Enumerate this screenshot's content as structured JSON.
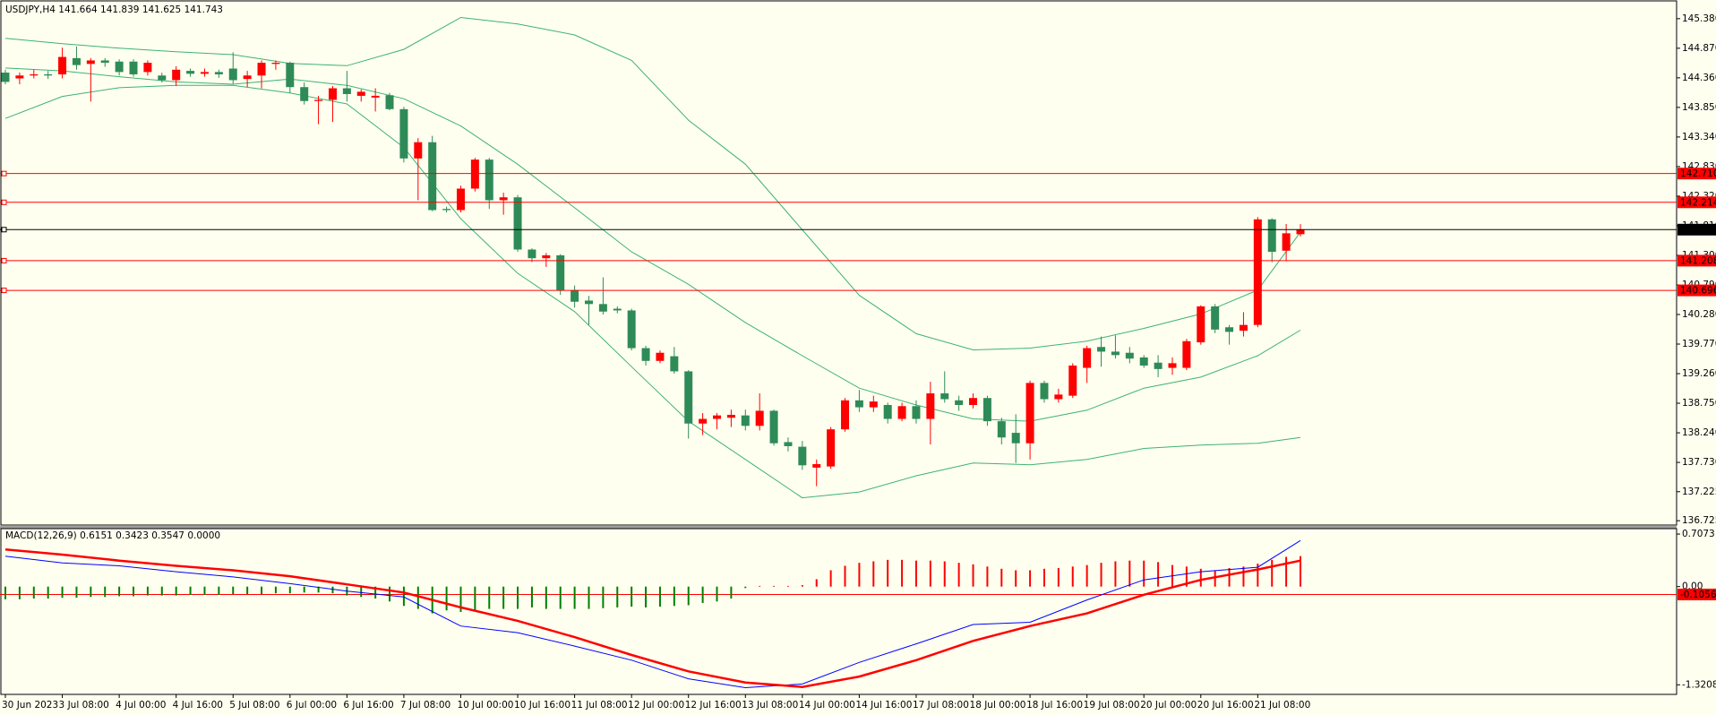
{
  "chart_data": [
    {
      "type": "candlestick",
      "title": "USDJPY,H4  141.664 141.839 141.625 141.743",
      "up_color": "#ff0000",
      "down_color": "#2e8b57",
      "categories": [
        "30 Jun 2023",
        null,
        null,
        null,
        "3 Jul 08:00",
        null,
        null,
        null,
        "4 Jul 00:00",
        null,
        null,
        null,
        "4 Jul 16:00",
        null,
        null,
        null,
        "5 Jul 08:00",
        null,
        null,
        null,
        "6 Jul 00:00",
        null,
        null,
        null,
        "6 Jul 16:00",
        null,
        null,
        null,
        "7 Jul 08:00",
        null,
        null,
        null,
        "10 Jul 00:00",
        null,
        null,
        null,
        "10 Jul 16:00",
        null,
        null,
        null,
        "11 Jul 08:00",
        null,
        null,
        null,
        "12 Jul 00:00",
        null,
        null,
        null,
        "12 Jul 16:00",
        null,
        null,
        null,
        "13 Jul 08:00",
        null,
        null,
        null,
        "14 Jul 00:00",
        null,
        null,
        null,
        "14 Jul 16:00",
        null,
        null,
        null,
        "17 Jul 08:00",
        null,
        null,
        null,
        "18 Jul 00:00",
        null,
        null,
        null,
        "18 Jul 16:00",
        null,
        null,
        null,
        "19 Jul 08:00",
        null,
        null,
        null,
        "20 Jul 00:00",
        null,
        null,
        null,
        "20 Jul 16:00",
        null,
        null,
        null,
        "21 Jul 08:00",
        null,
        null,
        null
      ],
      "open": [
        144.45,
        144.35,
        144.4,
        144.42,
        144.42,
        144.7,
        144.6,
        144.66,
        144.64,
        144.64,
        144.46,
        144.4,
        144.32,
        144.48,
        144.43,
        144.46,
        144.52,
        144.34,
        144.4,
        144.6,
        144.62,
        144.2,
        143.96,
        143.98,
        144.18,
        144.05,
        144.02,
        144.06,
        143.82,
        142.97,
        143.25,
        142.1,
        142.08,
        142.45,
        142.95,
        142.25,
        142.3,
        141.4,
        141.25,
        141.3,
        140.7,
        140.52,
        140.46,
        140.38,
        140.35,
        139.7,
        139.48,
        139.56,
        139.3,
        138.4,
        138.48,
        138.5,
        138.54,
        138.36,
        138.62,
        138.08,
        138.0,
        137.64,
        137.66,
        138.3,
        138.8,
        138.68,
        138.72,
        138.48,
        138.7,
        138.48,
        138.92,
        138.8,
        138.72,
        138.84,
        138.44,
        138.24,
        138.06,
        139.1,
        138.82,
        138.88,
        139.36,
        139.72,
        139.64,
        139.62,
        139.54,
        139.45,
        139.36,
        139.36,
        139.8,
        140.42,
        140.06,
        140.0,
        140.1,
        141.92,
        141.38,
        141.664
      ],
      "high": [
        144.5,
        144.45,
        144.5,
        144.48,
        144.88,
        144.9,
        144.7,
        144.7,
        144.68,
        144.68,
        144.66,
        144.45,
        144.56,
        144.52,
        144.52,
        144.5,
        144.8,
        144.48,
        144.66,
        144.66,
        144.64,
        144.28,
        144.05,
        144.22,
        144.48,
        144.16,
        144.18,
        144.1,
        143.86,
        143.32,
        143.36,
        142.14,
        142.5,
        142.98,
        142.98,
        142.38,
        142.34,
        141.42,
        141.34,
        141.32,
        140.78,
        140.6,
        140.92,
        140.42,
        140.38,
        139.74,
        139.66,
        139.72,
        139.32,
        138.58,
        138.58,
        138.64,
        138.64,
        138.92,
        138.64,
        138.16,
        138.1,
        137.78,
        138.34,
        138.84,
        138.98,
        138.88,
        138.76,
        138.76,
        138.8,
        139.12,
        139.3,
        138.88,
        138.92,
        138.88,
        138.5,
        138.56,
        139.14,
        139.14,
        139.0,
        139.44,
        139.74,
        139.9,
        139.92,
        139.72,
        139.58,
        139.58,
        139.54,
        139.86,
        140.44,
        140.46,
        140.1,
        140.32,
        141.96,
        141.94,
        141.84,
        141.839
      ],
      "low": [
        144.25,
        144.25,
        144.35,
        144.34,
        144.35,
        144.5,
        143.95,
        144.55,
        144.4,
        144.38,
        144.4,
        144.28,
        144.22,
        144.38,
        144.38,
        144.36,
        144.26,
        144.2,
        144.18,
        144.5,
        144.1,
        143.9,
        143.56,
        143.6,
        143.95,
        143.95,
        143.78,
        143.8,
        142.9,
        142.25,
        142.06,
        142.04,
        142.04,
        142.4,
        142.1,
        142.0,
        141.36,
        141.18,
        141.1,
        140.62,
        140.4,
        140.1,
        140.28,
        140.3,
        139.66,
        139.4,
        139.44,
        139.26,
        138.14,
        138.2,
        138.3,
        138.34,
        138.28,
        138.28,
        138.02,
        137.92,
        137.6,
        137.32,
        137.62,
        138.26,
        138.6,
        138.6,
        138.4,
        138.44,
        138.4,
        138.04,
        138.76,
        138.62,
        138.66,
        138.36,
        138.04,
        137.72,
        137.78,
        138.76,
        138.76,
        138.84,
        139.1,
        139.38,
        139.52,
        139.44,
        139.36,
        139.2,
        139.24,
        139.32,
        139.76,
        139.96,
        139.76,
        139.9,
        140.06,
        141.18,
        141.2,
        141.625
      ],
      "close": [
        144.29,
        144.4,
        144.42,
        144.4,
        144.72,
        144.58,
        144.66,
        144.62,
        144.46,
        144.42,
        144.62,
        144.32,
        144.5,
        144.43,
        144.46,
        144.42,
        144.32,
        144.4,
        144.62,
        144.62,
        144.2,
        143.96,
        143.98,
        144.18,
        144.08,
        144.12,
        144.05,
        143.82,
        142.97,
        143.25,
        142.08,
        142.08,
        142.45,
        142.95,
        142.25,
        142.3,
        141.4,
        141.25,
        141.3,
        140.7,
        140.5,
        140.46,
        140.33,
        140.35,
        139.7,
        139.48,
        139.62,
        139.3,
        138.4,
        138.48,
        138.54,
        138.55,
        138.36,
        138.62,
        138.06,
        138.01,
        137.68,
        137.7,
        138.3,
        138.8,
        138.68,
        138.78,
        138.48,
        138.7,
        138.48,
        138.92,
        138.82,
        138.72,
        138.84,
        138.44,
        138.16,
        138.06,
        139.1,
        138.82,
        138.9,
        139.4,
        139.7,
        139.64,
        139.58,
        139.52,
        139.4,
        139.34,
        139.44,
        139.82,
        140.42,
        140.02,
        139.98,
        140.1,
        141.92,
        141.36,
        141.68,
        141.743
      ],
      "bands": [
        {
          "color": "#3cb371",
          "x": [
            0,
            4,
            8,
            12,
            16,
            20,
            24,
            28,
            32,
            36,
            40,
            44,
            48,
            52,
            56,
            60,
            64,
            68,
            72,
            76,
            80,
            84,
            88,
            91
          ],
          "values": [
            145.04,
            144.95,
            144.87,
            144.81,
            144.76,
            144.61,
            144.57,
            144.85,
            145.4,
            145.29,
            145.1,
            144.66,
            143.63,
            142.87,
            141.74,
            140.61,
            139.95,
            139.67,
            139.7,
            139.82,
            140.04,
            140.29,
            140.7,
            141.7
          ]
        },
        {
          "color": "#3cb371",
          "x": [
            0,
            4,
            8,
            12,
            16,
            20,
            24,
            28,
            32,
            36,
            40,
            44,
            48,
            52,
            56,
            60,
            64,
            68,
            72,
            76,
            80,
            84,
            88,
            91
          ],
          "values": [
            144.53,
            144.48,
            144.38,
            144.29,
            144.25,
            144.34,
            144.23,
            144.0,
            143.53,
            142.87,
            142.12,
            141.36,
            140.8,
            140.14,
            139.57,
            139.01,
            138.72,
            138.48,
            138.44,
            138.63,
            139.01,
            139.2,
            139.57,
            140.01
          ]
        },
        {
          "color": "#3cb371",
          "x": [
            0,
            4,
            8,
            12,
            16,
            20,
            24,
            28,
            32,
            36,
            40,
            44,
            48,
            52,
            56,
            60,
            64,
            68,
            72,
            76,
            80,
            84,
            88,
            91
          ],
          "values": [
            143.66,
            144.04,
            144.19,
            144.23,
            144.23,
            144.1,
            143.91,
            143.16,
            141.93,
            140.99,
            140.33,
            139.38,
            138.44,
            137.78,
            137.12,
            137.22,
            137.5,
            137.72,
            137.69,
            137.78,
            137.97,
            138.03,
            138.06,
            138.16
          ]
        }
      ],
      "levels": [
        {
          "value": 142.71,
          "label": "142.710",
          "color": "#ff0000"
        },
        {
          "value": 142.214,
          "label": "142.214",
          "color": "#ff0000"
        },
        {
          "value": 141.743,
          "label": "141.743",
          "color": "#000000"
        },
        {
          "value": 141.208,
          "label": "141.208",
          "color": "#ff0000"
        },
        {
          "value": 140.696,
          "label": "140.696",
          "color": "#ff0000"
        }
      ],
      "ylim": [
        136.65,
        145.64
      ],
      "yticks": [
        {
          "value": 145.38,
          "label": "145.380"
        },
        {
          "value": 144.87,
          "label": "144.870"
        },
        {
          "value": 144.36,
          "label": "144.360"
        },
        {
          "value": 143.85,
          "label": "143.850"
        },
        {
          "value": 143.34,
          "label": "143.340"
        },
        {
          "value": 142.83,
          "label": "142.830"
        },
        {
          "value": 142.32,
          "label": "142.320"
        },
        {
          "value": 141.81,
          "label": "141.810"
        },
        {
          "value": 141.3,
          "label": "141.300"
        },
        {
          "value": 140.79,
          "label": "140.790"
        },
        {
          "value": 140.28,
          "label": "140.280"
        },
        {
          "value": 139.77,
          "label": "139.770"
        },
        {
          "value": 139.26,
          "label": "139.260"
        },
        {
          "value": 138.75,
          "label": "138.750"
        },
        {
          "value": 138.24,
          "label": "138.240"
        },
        {
          "value": 137.73,
          "label": "137.730"
        },
        137.225,
        136.725
      ]
    },
    {
      "type": "macd",
      "title": "MACD(12,26,9) 0.6151 0.3423 0.3547 0.0000",
      "level": -0.1056,
      "level_color": "#ff0000",
      "histogram": {
        "up_color": "#ff0000",
        "down_color": "#008000",
        "values": [
          -0.17,
          -0.17,
          -0.16,
          -0.16,
          -0.15,
          -0.15,
          -0.14,
          -0.14,
          -0.13,
          -0.13,
          -0.12,
          -0.12,
          -0.12,
          -0.11,
          -0.11,
          -0.11,
          -0.1,
          -0.1,
          -0.1,
          -0.09,
          -0.09,
          -0.08,
          -0.08,
          -0.09,
          -0.12,
          -0.14,
          -0.16,
          -0.2,
          -0.26,
          -0.3,
          -0.36,
          -0.32,
          -0.34,
          -0.33,
          -0.3,
          -0.3,
          -0.3,
          -0.28,
          -0.3,
          -0.3,
          -0.3,
          -0.3,
          -0.29,
          -0.28,
          -0.27,
          -0.28,
          -0.27,
          -0.26,
          -0.25,
          -0.22,
          -0.2,
          -0.16,
          -0.02,
          0.01,
          0.01,
          0.01,
          0.02,
          0.1,
          0.22,
          0.28,
          0.32,
          0.34,
          0.36,
          0.36,
          0.35,
          0.35,
          0.34,
          0.32,
          0.3,
          0.27,
          0.24,
          0.22,
          0.22,
          0.24,
          0.25,
          0.27,
          0.29,
          0.32,
          0.34,
          0.35,
          0.35,
          0.33,
          0.29,
          0.27,
          0.24,
          0.22,
          0.25,
          0.27,
          0.31,
          0.36,
          0.4,
          0.41
        ]
      },
      "series": [
        {
          "color": "#0000ff",
          "width": 1,
          "x": [
            0,
            4,
            8,
            12,
            16,
            20,
            24,
            28,
            32,
            36,
            40,
            44,
            48,
            52,
            56,
            60,
            64,
            68,
            72,
            76,
            80,
            84,
            88,
            91
          ],
          "values": [
            0.41,
            0.32,
            0.28,
            0.2,
            0.13,
            0.04,
            -0.06,
            -0.14,
            -0.53,
            -0.62,
            -0.8,
            -0.99,
            -1.24,
            -1.36,
            -1.31,
            -1.02,
            -0.77,
            -0.51,
            -0.48,
            -0.18,
            0.09,
            0.2,
            0.26,
            0.62
          ]
        },
        {
          "color": "#ff0000",
          "width": 2.5,
          "x": [
            0,
            4,
            8,
            12,
            16,
            20,
            24,
            28,
            32,
            36,
            40,
            44,
            48,
            52,
            56,
            60,
            64,
            68,
            72,
            76,
            80,
            84,
            88,
            91
          ],
          "values": [
            0.5,
            0.43,
            0.35,
            0.28,
            0.22,
            0.14,
            0.03,
            -0.08,
            -0.28,
            -0.46,
            -0.68,
            -0.92,
            -1.14,
            -1.29,
            -1.35,
            -1.21,
            -0.99,
            -0.73,
            -0.53,
            -0.36,
            -0.11,
            0.09,
            0.23,
            0.35
          ]
        }
      ],
      "ylim": [
        -1.45,
        0.78
      ],
      "yticks": [
        0.7073,
        {
          "value": 0,
          "label": "0.00"
        },
        -1.3208
      ]
    }
  ]
}
